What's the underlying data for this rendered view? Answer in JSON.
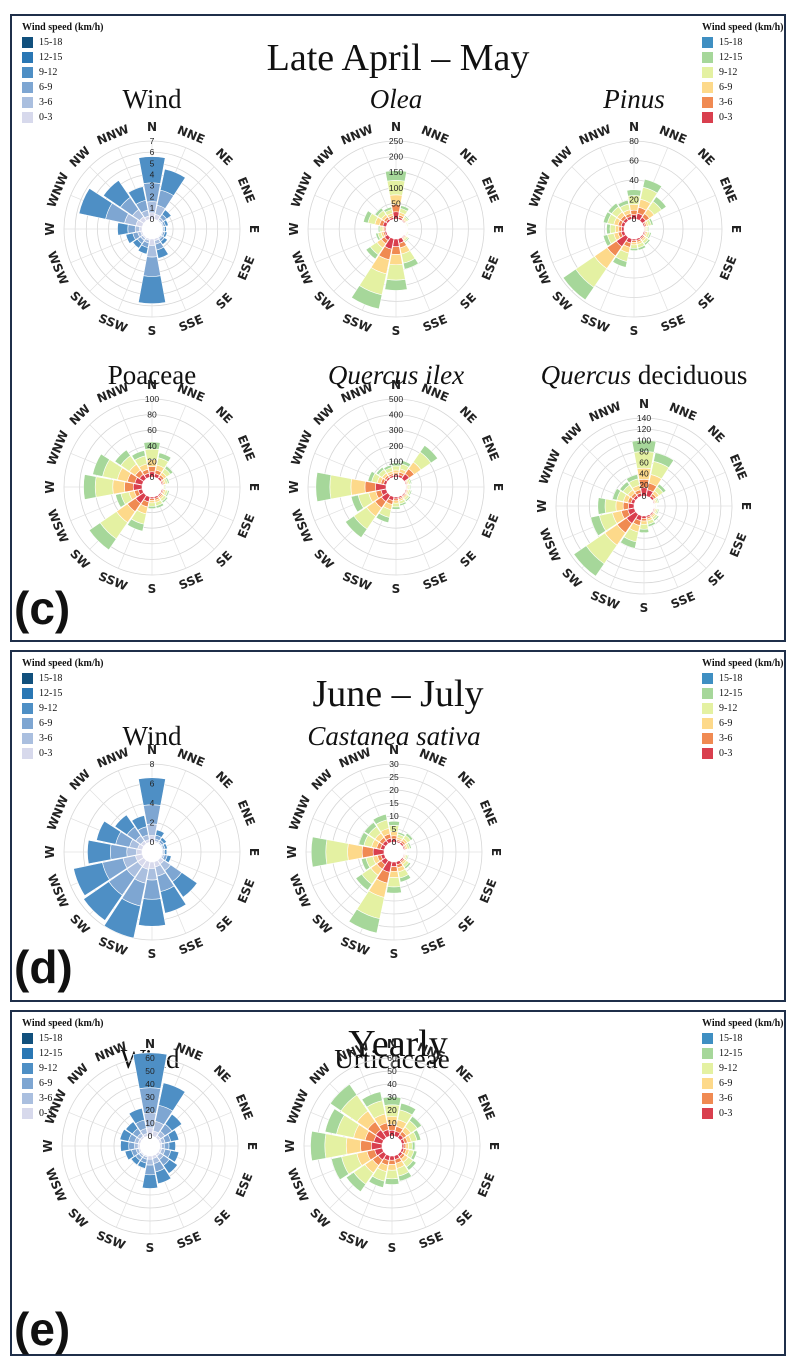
{
  "wind_palette": [
    "#d7d9ec",
    "#aabfdf",
    "#7ea6d2",
    "#4e8fc5",
    "#2a77b4",
    "#11507d"
  ],
  "pollen_palette": [
    "#d93f4e",
    "#f08a52",
    "#fdd98a",
    "#e4f1a2",
    "#a6d79a",
    "#3f8fc2"
  ],
  "panels": [
    {
      "id": "c",
      "letter": "(c)",
      "title": "Late April – May",
      "legend_left": {
        "title": "Wind speed (km/h)",
        "items": [
          "15-18",
          "12-15",
          "9-12",
          "6-9",
          "3-6",
          "0-3"
        ],
        "colors": [
          "#11507d",
          "#2a77b4",
          "#4e8fc5",
          "#7ea6d2",
          "#aabfdf",
          "#d7d9ec"
        ]
      },
      "legend_right": {
        "title": "Wind speed (km/h)",
        "items": [
          "15-18",
          "12-15",
          "9-12",
          "6-9",
          "3-6",
          "0-3"
        ],
        "colors": [
          "#3f8fc2",
          "#a6d79a",
          "#e4f1a2",
          "#fdd98a",
          "#f08a52",
          "#d93f4e"
        ]
      }
    },
    {
      "id": "d",
      "letter": "(d)",
      "title": "June – July",
      "legend_left": {
        "title": "Wind speed (km/h)",
        "items": [
          "15-18",
          "12-15",
          "9-12",
          "6-9",
          "3-6",
          "0-3"
        ],
        "colors": [
          "#11507d",
          "#2a77b4",
          "#4e8fc5",
          "#7ea6d2",
          "#aabfdf",
          "#d7d9ec"
        ]
      },
      "legend_right": {
        "title": "Wind speed (km/h)",
        "items": [
          "15-18",
          "12-15",
          "9-12",
          "6-9",
          "3-6",
          "0-3"
        ],
        "colors": [
          "#3f8fc2",
          "#a6d79a",
          "#e4f1a2",
          "#fdd98a",
          "#f08a52",
          "#d93f4e"
        ]
      }
    },
    {
      "id": "e",
      "letter": "(e)",
      "title": "Yearly",
      "legend_left": {
        "title": "Wind speed (km/h)",
        "items": [
          "15-18",
          "12-15",
          "9-12",
          "6-9",
          "3-6",
          "0-3"
        ],
        "colors": [
          "#11507d",
          "#2a77b4",
          "#4e8fc5",
          "#7ea6d2",
          "#aabfdf",
          "#d7d9ec"
        ]
      },
      "legend_right": {
        "title": "Wind speed (km/h)",
        "items": [
          "15-18",
          "12-15",
          "9-12",
          "6-9",
          "3-6",
          "0-3"
        ],
        "colors": [
          "#3f8fc2",
          "#a6d79a",
          "#e4f1a2",
          "#fdd98a",
          "#f08a52",
          "#d93f4e"
        ]
      }
    }
  ],
  "chart_data": [
    {
      "type": "wind-rose",
      "panel": "c",
      "title_parts": [
        {
          "text": "Wind",
          "italic": false
        }
      ],
      "palette": "wind",
      "ticks": [
        0,
        1,
        2,
        3,
        4,
        5,
        6,
        7
      ],
      "rmax": 7,
      "directions": [
        "N",
        "NNE",
        "NE",
        "ENE",
        "E",
        "ESE",
        "SE",
        "SSE",
        "S",
        "SSW",
        "SW",
        "WSW",
        "W",
        "WNW",
        "NW",
        "NNW"
      ],
      "totals": [
        5.6,
        4.6,
        1.2,
        0.6,
        0.4,
        0.5,
        0.8,
        1.8,
        5.8,
        1.4,
        1.2,
        1.5,
        2.2,
        5.8,
        4.4,
        3.0
      ]
    },
    {
      "type": "pollen-rose",
      "panel": "c",
      "title_parts": [
        {
          "text": "Olea",
          "italic": true
        }
      ],
      "palette": "pollen",
      "ticks": [
        0,
        50,
        100,
        150,
        200,
        250
      ],
      "rmax": 250,
      "directions": [
        "N",
        "NNE",
        "NE",
        "ENE",
        "E",
        "ESE",
        "SE",
        "SSE",
        "S",
        "SSW",
        "SW",
        "WSW",
        "W",
        "WNW",
        "NW",
        "NNW"
      ],
      "totals": [
        155,
        45,
        20,
        10,
        5,
        10,
        20,
        100,
        165,
        230,
        85,
        35,
        25,
        75,
        50,
        40
      ]
    },
    {
      "type": "pollen-rose",
      "panel": "c",
      "title_parts": [
        {
          "text": "Pinus",
          "italic": true
        }
      ],
      "palette": "pollen",
      "ticks": [
        0,
        20,
        40,
        60,
        80
      ],
      "rmax": 80,
      "directions": [
        "N",
        "NNE",
        "NE",
        "ENE",
        "E",
        "ESE",
        "SE",
        "SSE",
        "S",
        "SSW",
        "SW",
        "WSW",
        "W",
        "WNW",
        "NW",
        "NNW"
      ],
      "totals": [
        30,
        42,
        30,
        10,
        5,
        8,
        10,
        12,
        12,
        30,
        78,
        22,
        18,
        22,
        22,
        20
      ]
    },
    {
      "type": "pollen-rose",
      "panel": "c",
      "title_parts": [
        {
          "text": "Poaceae",
          "italic": false
        }
      ],
      "palette": "pollen",
      "ticks": [
        0,
        20,
        40,
        60,
        80,
        100
      ],
      "rmax": 100,
      "directions": [
        "N",
        "NNE",
        "NE",
        "ENE",
        "E",
        "ESE",
        "SE",
        "SSE",
        "S",
        "SSW",
        "SW",
        "WSW",
        "W",
        "WNW",
        "NW",
        "NNW"
      ],
      "totals": [
        45,
        32,
        20,
        10,
        5,
        10,
        12,
        15,
        15,
        45,
        85,
        35,
        75,
        65,
        45,
        35
      ]
    },
    {
      "type": "pollen-rose",
      "panel": "c",
      "title_parts": [
        {
          "text": "Quercus ilex",
          "italic": true
        }
      ],
      "palette": "pollen",
      "ticks": [
        0,
        100,
        200,
        300,
        400,
        500
      ],
      "rmax": 500,
      "directions": [
        "N",
        "NNE",
        "NE",
        "ENE",
        "E",
        "ESE",
        "SE",
        "SSE",
        "S",
        "SSW",
        "SW",
        "WSW",
        "W",
        "WNW",
        "NW",
        "NNW"
      ],
      "totals": [
        90,
        110,
        260,
        40,
        30,
        40,
        50,
        60,
        80,
        170,
        330,
        230,
        450,
        120,
        90,
        80
      ]
    },
    {
      "type": "pollen-rose",
      "panel": "c",
      "title_parts": [
        {
          "text": "Quercus",
          "italic": true
        },
        {
          "text": " deciduous",
          "italic": false
        }
      ],
      "palette": "pollen",
      "ticks": [
        0,
        20,
        40,
        60,
        80,
        100,
        120,
        140
      ],
      "rmax": 140,
      "directions": [
        "N",
        "NNE",
        "NE",
        "ENE",
        "E",
        "ESE",
        "SE",
        "SSE",
        "S",
        "SSW",
        "SW",
        "WSW",
        "W",
        "WNW",
        "NW",
        "NNW"
      ],
      "totals": [
        100,
        80,
        30,
        10,
        5,
        10,
        15,
        20,
        30,
        60,
        135,
        80,
        65,
        40,
        35,
        40
      ]
    },
    {
      "type": "wind-rose",
      "panel": "d",
      "title_parts": [
        {
          "text": "Wind",
          "italic": false
        }
      ],
      "palette": "wind",
      "ticks": [
        0,
        2,
        4,
        6,
        8
      ],
      "rmax": 8,
      "directions": [
        "N",
        "NNE",
        "NE",
        "ENE",
        "E",
        "ESE",
        "SE",
        "SSE",
        "S",
        "SSW",
        "SW",
        "WSW",
        "W",
        "WNW",
        "NW",
        "NNW"
      ],
      "totals": [
        6.6,
        1.3,
        0.8,
        0.6,
        0.5,
        1.0,
        4.6,
        5.4,
        6.6,
        8.0,
        7.5,
        7.2,
        5.6,
        4.8,
        3.6,
        2.8
      ]
    },
    {
      "type": "pollen-rose",
      "panel": "d",
      "title_parts": [
        {
          "text": "Castanea sativa",
          "italic": true
        }
      ],
      "palette": "pollen",
      "ticks": [
        0,
        5,
        10,
        15,
        20,
        25,
        30
      ],
      "rmax": 30,
      "directions": [
        "N",
        "NNE",
        "NE",
        "ENE",
        "E",
        "ESE",
        "SE",
        "SSE",
        "S",
        "SSW",
        "SW",
        "WSW",
        "W",
        "WNW",
        "NW",
        "NNW"
      ],
      "totals": [
        8,
        4,
        5,
        3,
        1,
        2,
        4,
        8,
        12,
        28,
        14,
        9,
        28,
        10,
        10,
        11
      ]
    },
    {
      "type": "wind-rose",
      "panel": "e",
      "title_parts": [
        {
          "text": "Wind",
          "italic": false
        }
      ],
      "palette": "wind",
      "ticks": [
        0,
        10,
        20,
        30,
        40,
        50,
        60
      ],
      "rmax": 60,
      "directions": [
        "N",
        "NNE",
        "NE",
        "ENE",
        "E",
        "ESE",
        "SE",
        "SSE",
        "S",
        "SSW",
        "SW",
        "WSW",
        "W",
        "WNW",
        "NW",
        "NNW"
      ],
      "totals": [
        64,
        42,
        22,
        15,
        12,
        15,
        18,
        22,
        25,
        10,
        10,
        12,
        15,
        16,
        15,
        22
      ]
    },
    {
      "type": "pollen-rose",
      "panel": "e",
      "title_parts": [
        {
          "text": "Urticaceae",
          "italic": false
        }
      ],
      "palette": "pollen",
      "ticks": [
        0,
        10,
        20,
        30,
        40,
        50,
        60
      ],
      "rmax": 60,
      "directions": [
        "N",
        "NNE",
        "NE",
        "ENE",
        "E",
        "ESE",
        "SE",
        "SSE",
        "S",
        "SSW",
        "SW",
        "WSW",
        "W",
        "WNW",
        "NW",
        "NNW"
      ],
      "totals": [
        30,
        26,
        20,
        15,
        10,
        12,
        15,
        20,
        22,
        25,
        35,
        40,
        55,
        45,
        50,
        35
      ]
    }
  ]
}
